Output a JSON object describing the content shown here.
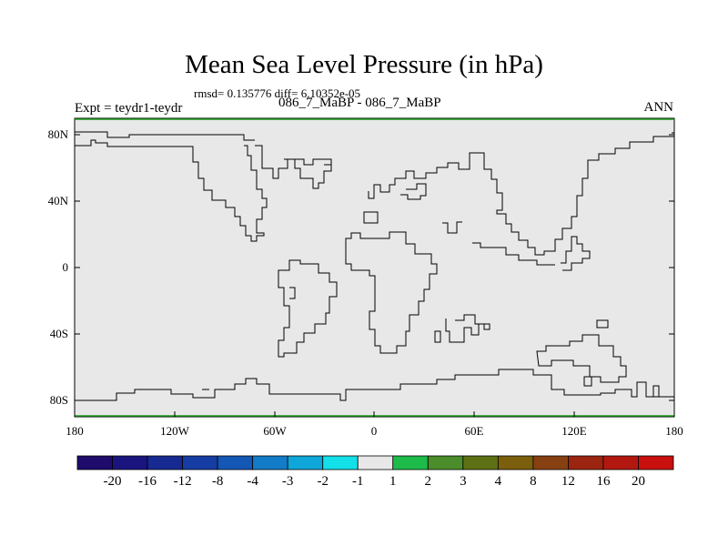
{
  "title": "Mean Sea Level Pressure (in hPa)",
  "stats_text": "rmsd= 0.135776 diff= 6.10352e-05",
  "left_label": "Expt = teydr1-teydr",
  "center_label": "086_7_MaBP - 086_7_MaBP",
  "right_label": "ANN",
  "map": {
    "field_color": "#e8e8e8",
    "lon_ticks": [
      "180",
      "120W",
      "60W",
      "0",
      "60E",
      "120E",
      "180"
    ],
    "lat_ticks": [
      "80N",
      "40N",
      "0",
      "40S",
      "80S"
    ],
    "lon_range": [
      -180,
      180
    ],
    "lat_range": [
      -90,
      90
    ]
  },
  "colorbar": {
    "labels": [
      "-20",
      "-16",
      "-12",
      "-8",
      "-4",
      "-3",
      "-2",
      "-1",
      "1",
      "2",
      "3",
      "4",
      "8",
      "12",
      "16",
      "20"
    ],
    "colors": [
      "#1f0b6b",
      "#1a157e",
      "#172a92",
      "#163da4",
      "#1457b5",
      "#137cc8",
      "#0fa6d9",
      "#13e0e8",
      "#e8e8e8",
      "#1dbb4a",
      "#4b8d2a",
      "#5e7014",
      "#7b5f0d",
      "#874012",
      "#9b2510",
      "#b31810",
      "#c9100e"
    ]
  }
}
